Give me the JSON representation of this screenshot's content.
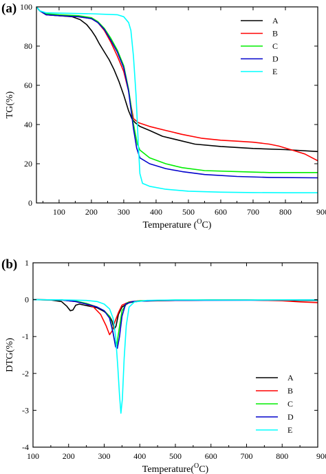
{
  "chart_data": [
    {
      "type": "line",
      "panel_label": "(a)",
      "xlabel": "Temperature (",
      "xlabel_unit": "C)",
      "degree_sign": "O",
      "ylabel": "TG(%)",
      "xlim": [
        30,
        900
      ],
      "ylim": [
        0,
        100
      ],
      "x_ticks": [
        "100",
        "200",
        "300",
        "400",
        "500",
        "600",
        "700",
        "800",
        "900"
      ],
      "y_ticks": [
        "0",
        "20",
        "40",
        "60",
        "80",
        "100"
      ],
      "legend_position": "top-right",
      "series": [
        {
          "name": "A",
          "color": "#000000",
          "points": [
            [
              30,
              100
            ],
            [
              40,
              98
            ],
            [
              60,
              96
            ],
            [
              100,
              95.5
            ],
            [
              140,
              95
            ],
            [
              165,
              93.5
            ],
            [
              185,
              91
            ],
            [
              200,
              88
            ],
            [
              212,
              85
            ],
            [
              225,
              81
            ],
            [
              240,
              77
            ],
            [
              255,
              73
            ],
            [
              270,
              68
            ],
            [
              285,
              62
            ],
            [
              300,
              55
            ],
            [
              315,
              47
            ],
            [
              325,
              43
            ],
            [
              335,
              41
            ],
            [
              350,
              39
            ],
            [
              380,
              37
            ],
            [
              420,
              34
            ],
            [
              470,
              32
            ],
            [
              520,
              30
            ],
            [
              600,
              28.8
            ],
            [
              700,
              27.8
            ],
            [
              800,
              27.2
            ],
            [
              900,
              26.2
            ]
          ]
        },
        {
          "name": "B",
          "color": "#ff0000",
          "points": [
            [
              30,
              100
            ],
            [
              40,
              98
            ],
            [
              60,
              96
            ],
            [
              100,
              95.5
            ],
            [
              160,
              95
            ],
            [
              200,
              94
            ],
            [
              220,
              92
            ],
            [
              240,
              88
            ],
            [
              260,
              82
            ],
            [
              280,
              75
            ],
            [
              300,
              67
            ],
            [
              315,
              57
            ],
            [
              322,
              50
            ],
            [
              330,
              43
            ],
            [
              345,
              41
            ],
            [
              380,
              39
            ],
            [
              430,
              37
            ],
            [
              480,
              35
            ],
            [
              540,
              33
            ],
            [
              600,
              32
            ],
            [
              650,
              31.5
            ],
            [
              700,
              31
            ],
            [
              750,
              30
            ],
            [
              780,
              29
            ],
            [
              810,
              27.5
            ],
            [
              830,
              26.5
            ],
            [
              860,
              25
            ],
            [
              900,
              21.5
            ]
          ]
        },
        {
          "name": "C",
          "color": "#00ee00",
          "points": [
            [
              30,
              100
            ],
            [
              40,
              98
            ],
            [
              60,
              96.5
            ],
            [
              100,
              96
            ],
            [
              160,
              95.5
            ],
            [
              200,
              94.5
            ],
            [
              220,
              92.5
            ],
            [
              240,
              89
            ],
            [
              260,
              84
            ],
            [
              280,
              78
            ],
            [
              300,
              70
            ],
            [
              315,
              58
            ],
            [
              322,
              50
            ],
            [
              328,
              42
            ],
            [
              335,
              36
            ],
            [
              342,
              30
            ],
            [
              350,
              27
            ],
            [
              380,
              23
            ],
            [
              430,
              20
            ],
            [
              480,
              18
            ],
            [
              550,
              16.5
            ],
            [
              650,
              16
            ],
            [
              750,
              15.5
            ],
            [
              900,
              15.5
            ]
          ]
        },
        {
          "name": "D",
          "color": "#0000cc",
          "points": [
            [
              30,
              100
            ],
            [
              40,
              98
            ],
            [
              60,
              96
            ],
            [
              100,
              95.5
            ],
            [
              160,
              95
            ],
            [
              200,
              94
            ],
            [
              220,
              92
            ],
            [
              240,
              88.5
            ],
            [
              260,
              83
            ],
            [
              280,
              77
            ],
            [
              300,
              69
            ],
            [
              315,
              57
            ],
            [
              322,
              48
            ],
            [
              330,
              38
            ],
            [
              340,
              28
            ],
            [
              350,
              23
            ],
            [
              380,
              20
            ],
            [
              430,
              17.5
            ],
            [
              480,
              16
            ],
            [
              550,
              14.5
            ],
            [
              650,
              13.5
            ],
            [
              750,
              13
            ],
            [
              900,
              12.8
            ]
          ]
        },
        {
          "name": "E",
          "color": "#00ffff",
          "points": [
            [
              30,
              100
            ],
            [
              40,
              98
            ],
            [
              60,
              97
            ],
            [
              100,
              96.8
            ],
            [
              200,
              96.5
            ],
            [
              280,
              96
            ],
            [
              300,
              95
            ],
            [
              315,
              92
            ],
            [
              322,
              88
            ],
            [
              330,
              75
            ],
            [
              338,
              55
            ],
            [
              345,
              30
            ],
            [
              350,
              15
            ],
            [
              358,
              10
            ],
            [
              380,
              8.5
            ],
            [
              430,
              7
            ],
            [
              500,
              6
            ],
            [
              600,
              5.5
            ],
            [
              700,
              5.3
            ],
            [
              800,
              5.2
            ],
            [
              900,
              5.2
            ]
          ]
        }
      ]
    },
    {
      "type": "line",
      "panel_label": "(b)",
      "xlabel": "Temperature(",
      "xlabel_unit": "C)",
      "degree_sign": "O",
      "ylabel": "DTG(%)",
      "xlim": [
        100,
        900
      ],
      "ylim": [
        -4,
        1
      ],
      "x_ticks": [
        "100",
        "200",
        "300",
        "400",
        "500",
        "600",
        "700",
        "800",
        "900"
      ],
      "y_ticks": [
        "-4",
        "-3",
        "-2",
        "-1",
        "0",
        "1"
      ],
      "legend_position": "bottom-right",
      "series": [
        {
          "name": "A",
          "color": "#000000",
          "points": [
            [
              100,
              0
            ],
            [
              150,
              -0.01
            ],
            [
              180,
              -0.05
            ],
            [
              195,
              -0.18
            ],
            [
              205,
              -0.3
            ],
            [
              212,
              -0.28
            ],
            [
              220,
              -0.15
            ],
            [
              230,
              -0.12
            ],
            [
              245,
              -0.15
            ],
            [
              260,
              -0.18
            ],
            [
              280,
              -0.22
            ],
            [
              300,
              -0.32
            ],
            [
              315,
              -0.45
            ],
            [
              322,
              -0.58
            ],
            [
              328,
              -0.8
            ],
            [
              333,
              -0.72
            ],
            [
              340,
              -0.4
            ],
            [
              350,
              -0.2
            ],
            [
              370,
              -0.08
            ],
            [
              400,
              -0.04
            ],
            [
              500,
              -0.02
            ],
            [
              600,
              -0.01
            ],
            [
              700,
              -0.01
            ],
            [
              800,
              -0.02
            ],
            [
              900,
              -0.02
            ]
          ]
        },
        {
          "name": "B",
          "color": "#ff0000",
          "points": [
            [
              100,
              0
            ],
            [
              180,
              -0.01
            ],
            [
              220,
              -0.05
            ],
            [
              250,
              -0.12
            ],
            [
              270,
              -0.2
            ],
            [
              290,
              -0.4
            ],
            [
              305,
              -0.7
            ],
            [
              315,
              -0.95
            ],
            [
              322,
              -0.85
            ],
            [
              330,
              -0.6
            ],
            [
              340,
              -0.35
            ],
            [
              350,
              -0.15
            ],
            [
              370,
              -0.06
            ],
            [
              400,
              -0.03
            ],
            [
              500,
              -0.02
            ],
            [
              600,
              -0.01
            ],
            [
              700,
              -0.01
            ],
            [
              760,
              -0.02
            ],
            [
              800,
              -0.03
            ],
            [
              850,
              -0.06
            ],
            [
              900,
              -0.08
            ]
          ]
        },
        {
          "name": "C",
          "color": "#00ee00",
          "points": [
            [
              100,
              0
            ],
            [
              180,
              -0.01
            ],
            [
              220,
              -0.04
            ],
            [
              250,
              -0.1
            ],
            [
              280,
              -0.2
            ],
            [
              300,
              -0.3
            ],
            [
              315,
              -0.45
            ],
            [
              322,
              -0.75
            ],
            [
              330,
              -1.15
            ],
            [
              335,
              -1.25
            ],
            [
              342,
              -0.8
            ],
            [
              350,
              -0.3
            ],
            [
              365,
              -0.08
            ],
            [
              400,
              -0.03
            ],
            [
              500,
              -0.01
            ],
            [
              900,
              -0.01
            ]
          ]
        },
        {
          "name": "D",
          "color": "#0000cc",
          "points": [
            [
              100,
              0
            ],
            [
              180,
              -0.01
            ],
            [
              220,
              -0.05
            ],
            [
              250,
              -0.12
            ],
            [
              280,
              -0.2
            ],
            [
              300,
              -0.3
            ],
            [
              315,
              -0.5
            ],
            [
              325,
              -0.9
            ],
            [
              332,
              -1.28
            ],
            [
              337,
              -1.32
            ],
            [
              343,
              -1.0
            ],
            [
              350,
              -0.45
            ],
            [
              360,
              -0.12
            ],
            [
              380,
              -0.05
            ],
            [
              450,
              -0.02
            ],
            [
              900,
              -0.01
            ]
          ]
        },
        {
          "name": "E",
          "color": "#00ffff",
          "points": [
            [
              100,
              0
            ],
            [
              200,
              -0.01
            ],
            [
              250,
              -0.02
            ],
            [
              280,
              -0.05
            ],
            [
              300,
              -0.12
            ],
            [
              315,
              -0.25
            ],
            [
              325,
              -0.5
            ],
            [
              332,
              -1.0
            ],
            [
              338,
              -1.8
            ],
            [
              343,
              -2.6
            ],
            [
              347,
              -3.08
            ],
            [
              351,
              -2.7
            ],
            [
              356,
              -1.6
            ],
            [
              362,
              -0.7
            ],
            [
              370,
              -0.2
            ],
            [
              385,
              -0.06
            ],
            [
              420,
              -0.02
            ],
            [
              500,
              -0.01
            ],
            [
              900,
              -0.01
            ]
          ]
        }
      ]
    }
  ]
}
